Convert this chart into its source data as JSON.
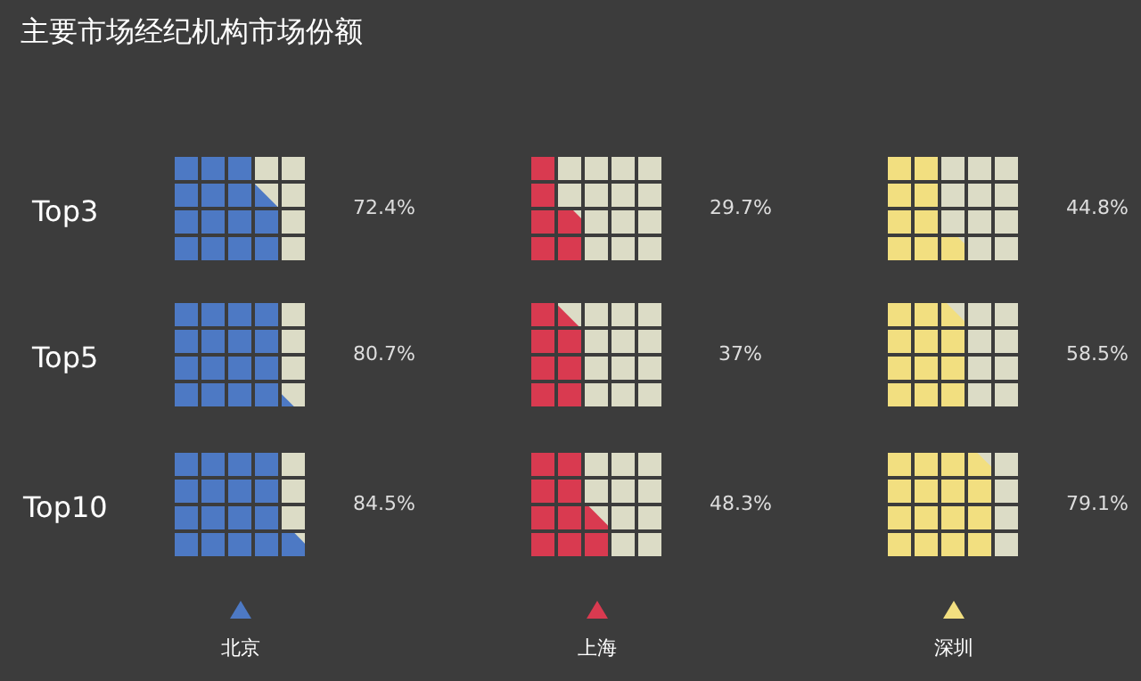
{
  "chart_data": {
    "type": "other",
    "title": "主要市场经纪机构市场份额",
    "categories": [
      "Top3",
      "Top5",
      "Top10"
    ],
    "series": [
      {
        "name": "北京",
        "color": "#4d79c4",
        "values": [
          72.4,
          80.7,
          84.5
        ],
        "value_labels": [
          "72.4%",
          "80.7%",
          "84.5%"
        ]
      },
      {
        "name": "上海",
        "color": "#d93a50",
        "values": [
          29.7,
          37,
          48.3
        ],
        "value_labels": [
          "29.7%",
          "37%",
          "48.3%"
        ]
      },
      {
        "name": "深圳",
        "color": "#f2df80",
        "values": [
          44.8,
          58.5,
          79.1
        ],
        "value_labels": [
          "44.8%",
          "58.5%",
          "79.1%"
        ]
      }
    ]
  }
}
